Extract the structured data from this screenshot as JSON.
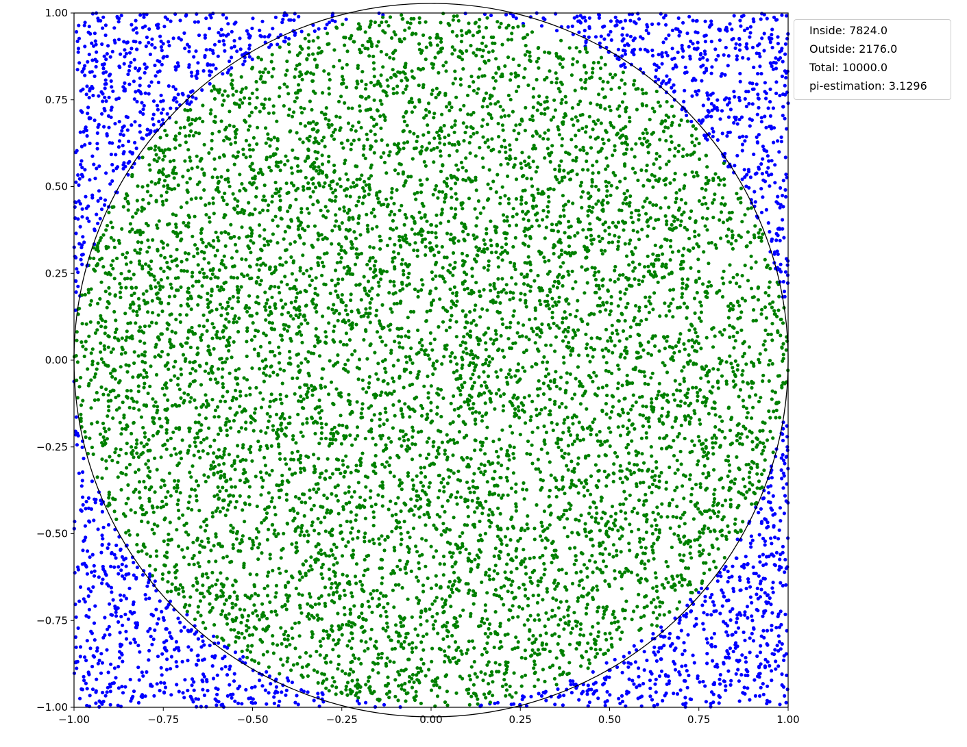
{
  "chart_data": {
    "type": "scatter",
    "title": "",
    "xlabel": "",
    "ylabel": "",
    "xlim": [
      -1.0,
      1.0
    ],
    "ylim": [
      -1.0,
      1.0
    ],
    "grid": false,
    "aspect": "equal",
    "x_ticks": [
      "−1.00",
      "−0.75",
      "−0.50",
      "−0.25",
      "0.00",
      "0.25",
      "0.50",
      "0.75",
      "1.00"
    ],
    "y_ticks": [
      "1.00",
      "0.75",
      "0.50",
      "0.25",
      "0.00",
      "−0.25",
      "−0.50",
      "−0.75",
      "−1.00"
    ],
    "x_tick_values": [
      -1.0,
      -0.75,
      -0.5,
      -0.25,
      0.0,
      0.25,
      0.5,
      0.75,
      1.0
    ],
    "y_tick_values": [
      1.0,
      0.75,
      0.5,
      0.25,
      0.0,
      -0.25,
      -0.5,
      -0.75,
      -1.0
    ],
    "circle": {
      "center": [
        0,
        0
      ],
      "radius": 1.0,
      "color": "#000000"
    },
    "series": [
      {
        "role": "inside",
        "color": "#008000",
        "count": 7824,
        "rule": "x^2 + y^2 <= 1"
      },
      {
        "role": "outside",
        "color": "#0000ff",
        "count": 2176,
        "rule": "x^2 + y^2 > 1"
      }
    ],
    "total_points": 10000,
    "legend_position": "upper right, outside plot",
    "legend": [
      "Inside: 7824.0",
      "Outside: 2176.0",
      "Total: 10000.0",
      "pi-estimation: 3.1296"
    ]
  }
}
